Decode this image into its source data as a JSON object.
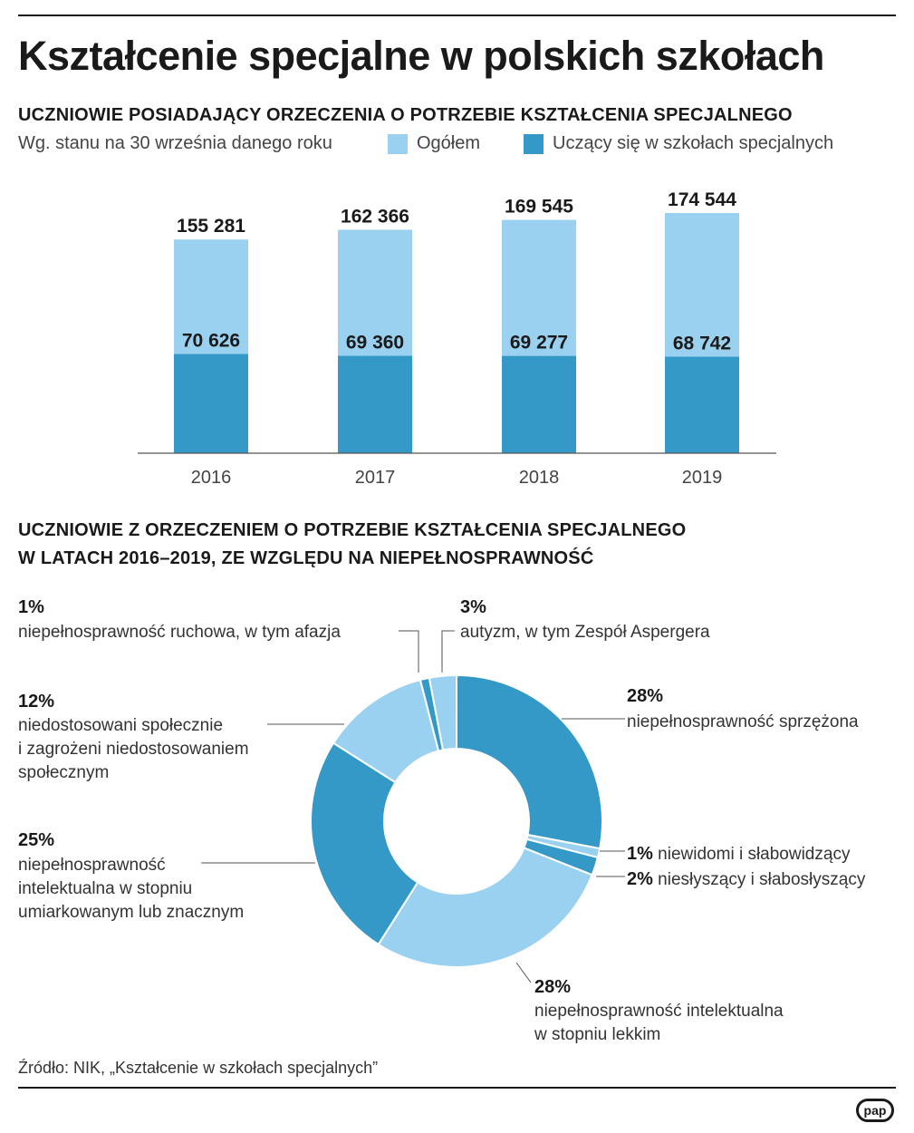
{
  "title": "Kształcenie specjalne w polskich szkołach",
  "bar_section": {
    "heading": "UCZNIOWIE POSIADAJĄCY ORZECZENIA O POTRZEBIE KSZTAŁCENIA SPECJALNEGO",
    "note": "Wg. stanu na 30 września danego roku",
    "legend": [
      {
        "label": "Ogółem",
        "color": "#9bd1f0"
      },
      {
        "label": "Uczący się w szkołach specjalnych",
        "color": "#3599c8"
      }
    ]
  },
  "pie_section": {
    "heading_line1": "UCZNIOWIE Z ORZECZENIEM O POTRZEBIE KSZTAŁCENIA SPECJALNEGO",
    "heading_line2": "W LATACH 2016–2019, ZE WZGLĘDU NA NIEPEŁNOSPRAWNOŚĆ"
  },
  "chart_data": [
    {
      "type": "bar",
      "categories": [
        "2016",
        "2017",
        "2018",
        "2019"
      ],
      "series": [
        {
          "name": "Ogółem",
          "values": [
            155281,
            162366,
            169545,
            174544
          ],
          "labels": [
            "155 281",
            "162 366",
            "169 545",
            "174 544"
          ],
          "color": "#9bd1f0"
        },
        {
          "name": "Uczący się w szkołach specjalnych",
          "values": [
            70626,
            69360,
            69277,
            68742
          ],
          "labels": [
            "70 626",
            "69 360",
            "69 277",
            "68 742"
          ],
          "color": "#3599c8"
        }
      ],
      "ylim": [
        0,
        174544
      ]
    },
    {
      "type": "pie",
      "hole": true,
      "slices": [
        {
          "pct_label": "28%",
          "value": 28,
          "label_lines": [
            "niepełnosprawność sprzężona"
          ],
          "color": "#3599c8"
        },
        {
          "pct_label": "1%",
          "value": 1,
          "label_lines": [
            "niewidomi i słabowidzący"
          ],
          "color": "#9bd1f0"
        },
        {
          "pct_label": "2%",
          "value": 2,
          "label_lines": [
            "niesłyszący i słabosłyszący"
          ],
          "color": "#3599c8"
        },
        {
          "pct_label": "28%",
          "value": 28,
          "label_lines": [
            "niepełnosprawność intelektualna",
            "w stopniu lekkim"
          ],
          "color": "#9bd1f0"
        },
        {
          "pct_label": "25%",
          "value": 25,
          "label_lines": [
            "niepełnosprawność",
            "intelektualna w stopniu",
            "umiarkowanym lub znacznym"
          ],
          "color": "#3599c8"
        },
        {
          "pct_label": "12%",
          "value": 12,
          "label_lines": [
            "niedostosowani społecznie",
            "i zagrożeni niedostosowaniem",
            "społecznym"
          ],
          "color": "#9bd1f0"
        },
        {
          "pct_label": "1%",
          "value": 1,
          "label_lines": [
            "niepełnosprawność ruchowa, w tym afazja"
          ],
          "color": "#3599c8"
        },
        {
          "pct_label": "3%",
          "value": 3,
          "label_lines": [
            "autyzm, w tym Zespół Aspergera"
          ],
          "color": "#9bd1f0"
        }
      ]
    }
  ],
  "source": "Źródło: NIK, „Kształcenie w szkołach specjalnych”",
  "logo": "pap"
}
